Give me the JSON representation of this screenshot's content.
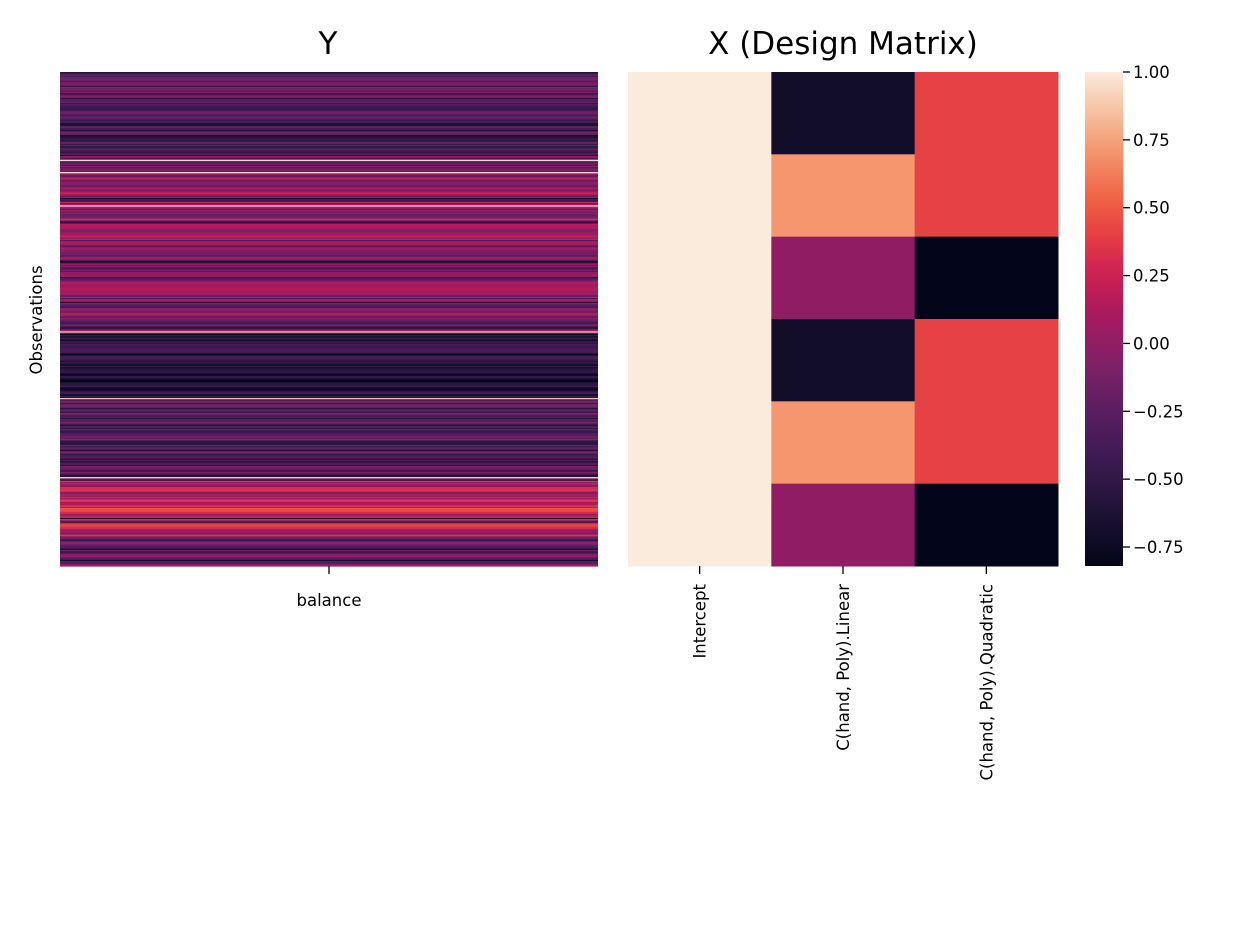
{
  "chart_data": [
    {
      "type": "heatmap",
      "title": "Y",
      "xlabel": "",
      "ylabel": "Observations",
      "columns": [
        "balance"
      ],
      "row_count": 400,
      "values_note_source": "dense striped single-column heatmap, values shown by colour only",
      "y_tick_labels_visible": false,
      "profile": [
        {
          "from": 0.0,
          "to": 0.06,
          "level": 0.3
        },
        {
          "from": 0.06,
          "to": 0.14,
          "level": 0.24
        },
        {
          "from": 0.14,
          "to": 0.2,
          "level": 0.32
        },
        {
          "from": 0.2,
          "to": 0.3,
          "level": 0.45
        },
        {
          "from": 0.3,
          "to": 0.38,
          "level": 0.42
        },
        {
          "from": 0.38,
          "to": 0.46,
          "level": 0.4
        },
        {
          "from": 0.46,
          "to": 0.53,
          "level": 0.38
        },
        {
          "from": 0.53,
          "to": 0.66,
          "level": 0.14
        },
        {
          "from": 0.66,
          "to": 0.76,
          "level": 0.3
        },
        {
          "from": 0.76,
          "to": 0.82,
          "level": 0.26
        },
        {
          "from": 0.82,
          "to": 0.94,
          "level": 0.55
        },
        {
          "from": 0.94,
          "to": 1.0,
          "level": 0.35
        }
      ]
    },
    {
      "type": "heatmap",
      "title": "X (Design Matrix)",
      "xlabel": "",
      "ylabel": "",
      "columns": [
        "Intercept",
        "C(hand, Poly).Linear",
        "C(hand, Poly).Quadratic"
      ],
      "row_count": 6,
      "rows": [
        [
          1.0,
          -0.71,
          0.41
        ],
        [
          1.0,
          0.71,
          0.41
        ],
        [
          1.0,
          0.0,
          -0.82
        ],
        [
          1.0,
          -0.71,
          0.41
        ],
        [
          1.0,
          0.71,
          0.41
        ],
        [
          1.0,
          0.0,
          -0.82
        ]
      ],
      "y_tick_labels_visible": false
    }
  ],
  "colorbar": {
    "colormap": "rocket",
    "vmin": -0.82,
    "vmax": 1.0,
    "tick_values": [
      1.0,
      0.75,
      0.5,
      0.25,
      0.0,
      -0.25,
      -0.5,
      -0.75
    ],
    "tick_labels": [
      "1.00",
      "0.75",
      "0.50",
      "0.25",
      "0.00",
      "−0.25",
      "−0.50",
      "−0.75"
    ]
  }
}
